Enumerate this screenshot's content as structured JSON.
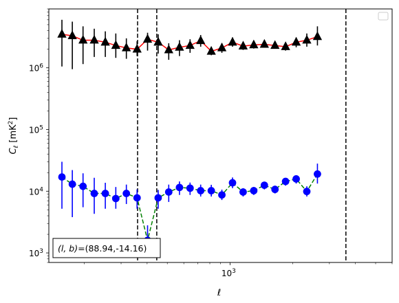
{
  "chart_data": {
    "type": "scatter",
    "xlabel": "ℓ",
    "ylabel": "C_ℓ [mK²]",
    "x_scale": "log",
    "y_scale": "log",
    "xlim": [
      135,
      6000
    ],
    "ylim": [
      700,
      9000000
    ],
    "x_tick_labels": [
      {
        "value": 1000,
        "mantissa": "10",
        "exp": "3"
      }
    ],
    "y_tick_labels": [
      {
        "value": 1000,
        "mantissa": "10",
        "exp": "3"
      },
      {
        "value": 10000,
        "mantissa": "10",
        "exp": "4"
      },
      {
        "value": 100000,
        "mantissa": "10",
        "exp": "5"
      },
      {
        "value": 1000000,
        "mantissa": "10",
        "exp": "6"
      }
    ],
    "grid": false,
    "legend": {
      "placement": "top-right",
      "entries": []
    },
    "vlines": [
      {
        "x": 360
      },
      {
        "x": 445
      },
      {
        "x": 3600
      }
    ],
    "annotation": {
      "label_lhs": "(l, b)",
      "label_rhs": "=(88.94,-14.16)",
      "placement": "bottom-left"
    },
    "series": [
      {
        "color": "#000000",
        "line_color": "#ff0000",
        "line_style": "solid",
        "marker": "triangle",
        "points": [
          {
            "x": 156,
            "y": 3500000,
            "ylo": 1050000,
            "yhi": 6000000
          },
          {
            "x": 175,
            "y": 3300000,
            "ylo": 950000,
            "yhi": 5600000
          },
          {
            "x": 197,
            "y": 2800000,
            "ylo": 1150000,
            "yhi": 4700000
          },
          {
            "x": 223,
            "y": 2800000,
            "ylo": 1500000,
            "yhi": 4300000
          },
          {
            "x": 252,
            "y": 2600000,
            "ylo": 1500000,
            "yhi": 3900000
          },
          {
            "x": 283,
            "y": 2300000,
            "ylo": 1450000,
            "yhi": 3600000
          },
          {
            "x": 318,
            "y": 2100000,
            "ylo": 1400000,
            "yhi": 3000000
          },
          {
            "x": 358,
            "y": 2000000,
            "ylo": 1550000,
            "yhi": 2700000
          },
          {
            "x": 402,
            "y": 2900000,
            "ylo": 1900000,
            "yhi": 3700000
          },
          {
            "x": 452,
            "y": 2600000,
            "ylo": 1700000,
            "yhi": 3500000
          },
          {
            "x": 508,
            "y": 1950000,
            "ylo": 1350000,
            "yhi": 2500000
          },
          {
            "x": 572,
            "y": 2150000,
            "ylo": 1550000,
            "yhi": 2800000
          },
          {
            "x": 643,
            "y": 2300000,
            "ylo": 1750000,
            "yhi": 2900000
          },
          {
            "x": 723,
            "y": 2750000,
            "ylo": 2200000,
            "yhi": 3400000
          },
          {
            "x": 813,
            "y": 1850000,
            "ylo": 1600000,
            "yhi": 2200000
          },
          {
            "x": 914,
            "y": 2100000,
            "ylo": 1750000,
            "yhi": 2500000
          },
          {
            "x": 1028,
            "y": 2600000,
            "ylo": 2200000,
            "yhi": 3100000
          },
          {
            "x": 1156,
            "y": 2250000,
            "ylo": 1950000,
            "yhi": 2600000
          },
          {
            "x": 1300,
            "y": 2350000,
            "ylo": 2050000,
            "yhi": 2700000
          },
          {
            "x": 1462,
            "y": 2400000,
            "ylo": 2150000,
            "yhi": 2800000
          },
          {
            "x": 1644,
            "y": 2300000,
            "ylo": 2050000,
            "yhi": 2600000
          },
          {
            "x": 1848,
            "y": 2200000,
            "ylo": 1900000,
            "yhi": 2500000
          },
          {
            "x": 2078,
            "y": 2600000,
            "ylo": 2150000,
            "yhi": 3100000
          },
          {
            "x": 2337,
            "y": 2800000,
            "ylo": 2200000,
            "yhi": 3600000
          },
          {
            "x": 2628,
            "y": 3200000,
            "ylo": 2300000,
            "yhi": 4700000
          }
        ]
      },
      {
        "color": "#0000ff",
        "line_color": "#008000",
        "line_style": "dashed",
        "marker": "circle",
        "points": [
          {
            "x": 156,
            "y": 17000,
            "ylo": 5200,
            "yhi": 30000
          },
          {
            "x": 175,
            "y": 13000,
            "ylo": 3800,
            "yhi": 22000
          },
          {
            "x": 197,
            "y": 12000,
            "ylo": 5500,
            "yhi": 19500
          },
          {
            "x": 223,
            "y": 9200,
            "ylo": 4300,
            "yhi": 16500
          },
          {
            "x": 252,
            "y": 9200,
            "ylo": 5200,
            "yhi": 13700
          },
          {
            "x": 283,
            "y": 7600,
            "ylo": 5200,
            "yhi": 11700
          },
          {
            "x": 318,
            "y": 9200,
            "ylo": 6200,
            "yhi": 12800
          },
          {
            "x": 358,
            "y": 7800,
            "ylo": 5200,
            "yhi": 10700
          },
          {
            "x": 402,
            "y": 1600,
            "ylo": 1050,
            "yhi": 2800
          },
          {
            "x": 452,
            "y": 7800,
            "ylo": 5200,
            "yhi": 10500
          },
          {
            "x": 508,
            "y": 9700,
            "ylo": 6700,
            "yhi": 12800
          },
          {
            "x": 572,
            "y": 11500,
            "ylo": 8700,
            "yhi": 14400
          },
          {
            "x": 643,
            "y": 11200,
            "ylo": 8700,
            "yhi": 13800
          },
          {
            "x": 723,
            "y": 10200,
            "ylo": 8200,
            "yhi": 12800
          },
          {
            "x": 813,
            "y": 10200,
            "ylo": 8200,
            "yhi": 12700
          },
          {
            "x": 914,
            "y": 8700,
            "ylo": 7200,
            "yhi": 10600
          },
          {
            "x": 1028,
            "y": 13700,
            "ylo": 11200,
            "yhi": 16700
          },
          {
            "x": 1156,
            "y": 9700,
            "ylo": 8200,
            "yhi": 11200
          },
          {
            "x": 1300,
            "y": 10200,
            "ylo": 8700,
            "yhi": 11700
          },
          {
            "x": 1462,
            "y": 12500,
            "ylo": 10700,
            "yhi": 14300
          },
          {
            "x": 1644,
            "y": 10700,
            "ylo": 9200,
            "yhi": 12300
          },
          {
            "x": 1848,
            "y": 14400,
            "ylo": 12300,
            "yhi": 16200
          },
          {
            "x": 2078,
            "y": 15800,
            "ylo": 13300,
            "yhi": 18200
          },
          {
            "x": 2337,
            "y": 9900,
            "ylo": 8200,
            "yhi": 12000
          },
          {
            "x": 2628,
            "y": 19000,
            "ylo": 13300,
            "yhi": 28000
          }
        ]
      }
    ]
  }
}
